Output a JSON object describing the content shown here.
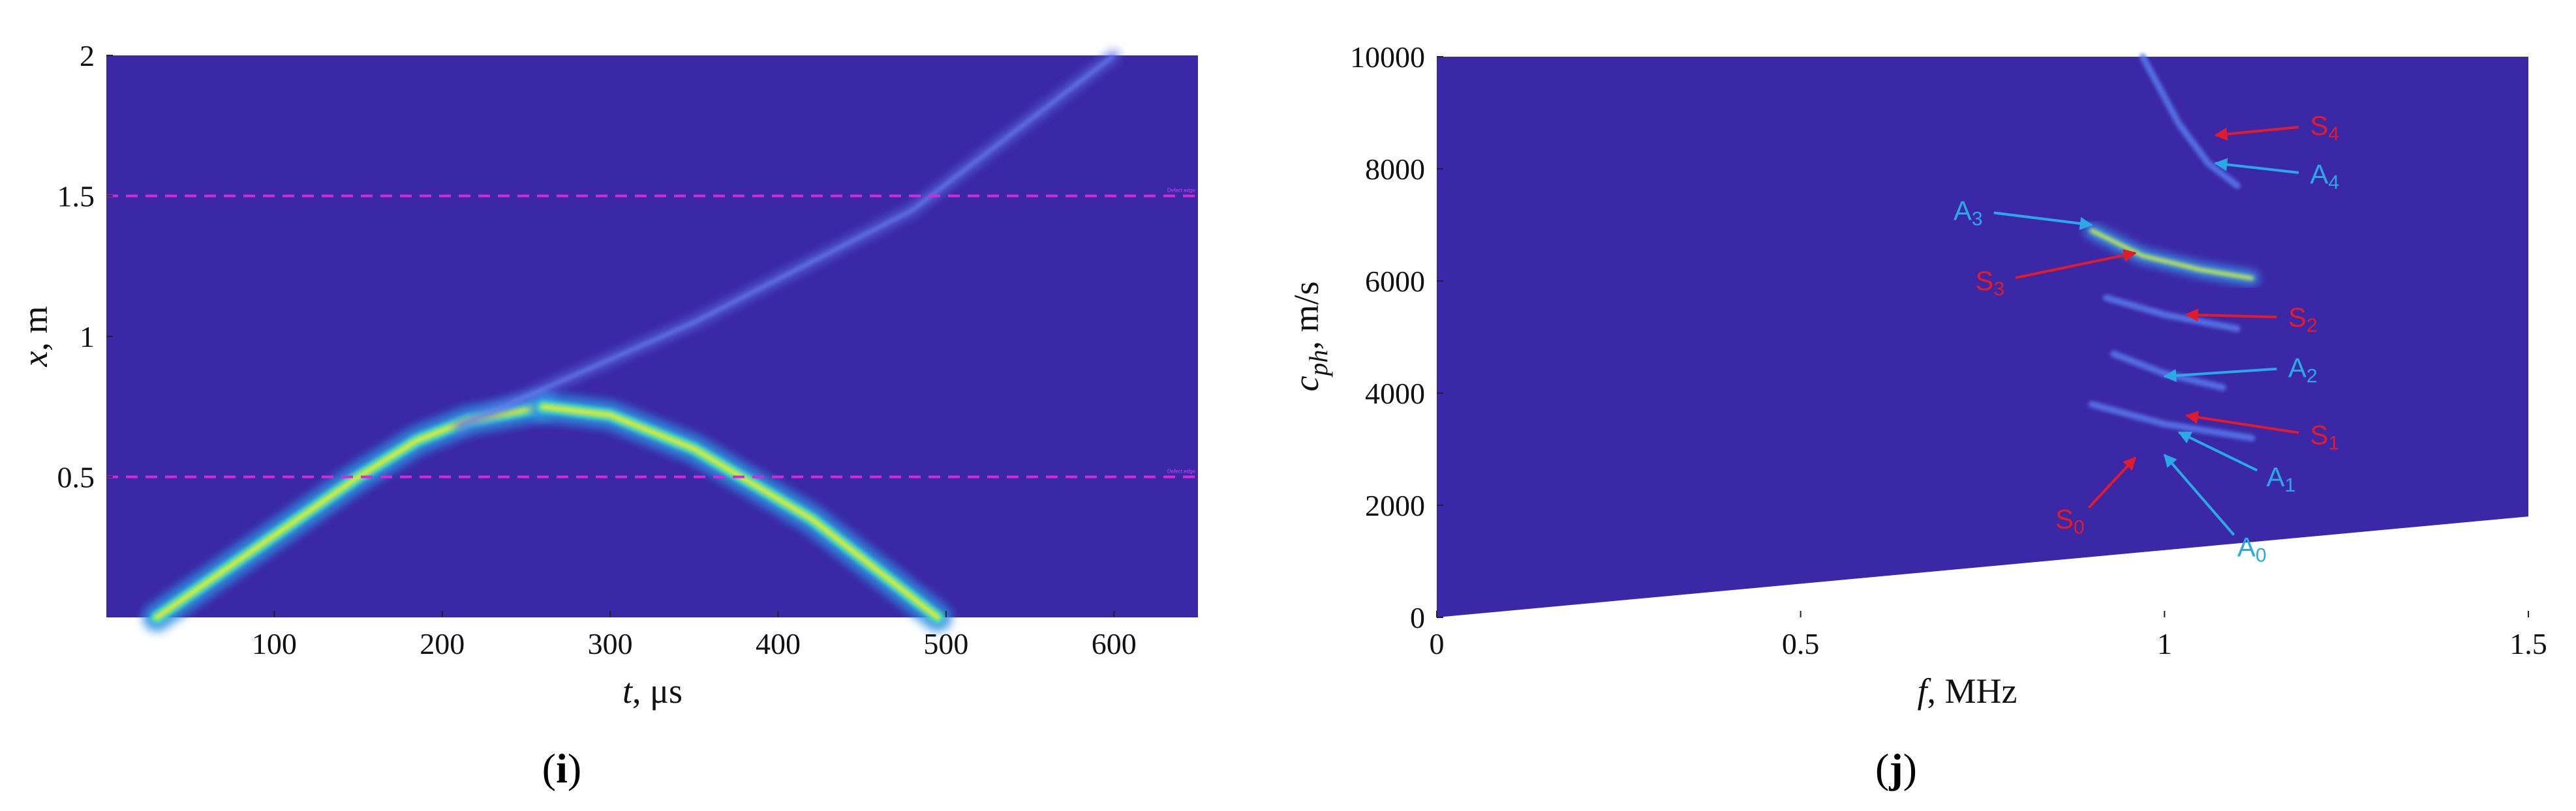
{
  "colors": {
    "background": "#3a28a6",
    "dashed_line": "#d42ad8",
    "mode_s": "#e11b2b",
    "mode_a": "#2aa9e6",
    "blank": "#ffffff"
  },
  "chart_data": [
    {
      "type": "heatmap",
      "caption_open": "(",
      "caption_letter": "i",
      "caption_close": ")",
      "xlabel_var": "t",
      "xlabel_unit": ", μs",
      "ylabel_var": "x",
      "ylabel_unit": ", m",
      "xlim": [
        0,
        650
      ],
      "ylim": [
        0,
        2
      ],
      "xticks": [
        "100",
        "200",
        "300",
        "400",
        "500",
        "600"
      ],
      "yticks": [
        "0.5",
        "1",
        "1.5",
        "2"
      ],
      "reference_lines": [
        {
          "y": 0.5,
          "label": "Defect edge"
        },
        {
          "y": 1.5,
          "label": "Defect edge"
        }
      ],
      "bands": [
        {
          "name": "incident packet",
          "points": [
            [
              30,
              0
            ],
            [
              150,
              0.5
            ],
            [
              185,
              0.63
            ],
            [
              215,
              0.7
            ],
            [
              260,
              0.75
            ]
          ],
          "strength": "high"
        },
        {
          "name": "reflected packet",
          "points": [
            [
              260,
              0.75
            ],
            [
              300,
              0.72
            ],
            [
              350,
              0.6
            ],
            [
              420,
              0.35
            ],
            [
              495,
              0
            ]
          ],
          "strength": "high"
        },
        {
          "name": "transmitted wave",
          "points": [
            [
              210,
              0.68
            ],
            [
              350,
              1.05
            ],
            [
              480,
              1.45
            ],
            [
              600,
              2.0
            ]
          ],
          "strength": "low"
        }
      ]
    },
    {
      "type": "heatmap",
      "caption_open": "(",
      "caption_letter": "j",
      "caption_close": ")",
      "xlabel_var": "f",
      "xlabel_unit": ", MHz",
      "ylabel_var": "c",
      "ylabel_sub": "ph",
      "ylabel_unit": ", m/s",
      "xlim": [
        0,
        1.5
      ],
      "ylim": [
        0,
        10000
      ],
      "xticks": [
        "0",
        "0.5",
        "1",
        "1.5"
      ],
      "yticks": [
        "0",
        "2000",
        "4000",
        "6000",
        "8000",
        "10000"
      ],
      "blank_region": {
        "f_at_edge": 1.5,
        "cph_at_edge": 1800
      },
      "curves": [
        {
          "name": "S3/A3",
          "points": [
            [
              0.9,
              6900
            ],
            [
              0.97,
              6450
            ],
            [
              1.05,
              6200
            ],
            [
              1.12,
              6050
            ]
          ],
          "strength": "high"
        },
        {
          "name": "A4",
          "points": [
            [
              0.97,
              10000
            ],
            [
              1.02,
              8800
            ],
            [
              1.06,
              8100
            ],
            [
              1.1,
              7700
            ]
          ],
          "strength": "low"
        },
        {
          "name": "S2",
          "points": [
            [
              0.92,
              5700
            ],
            [
              1.0,
              5400
            ],
            [
              1.1,
              5150
            ]
          ],
          "strength": "low"
        },
        {
          "name": "A2",
          "points": [
            [
              0.93,
              4700
            ],
            [
              1.0,
              4350
            ],
            [
              1.08,
              4100
            ]
          ],
          "strength": "low"
        },
        {
          "name": "S1/A1",
          "points": [
            [
              0.9,
              3800
            ],
            [
              1.0,
              3450
            ],
            [
              1.12,
              3200
            ]
          ],
          "strength": "low"
        }
      ],
      "annotations": [
        {
          "kind": "S",
          "main": "S",
          "sub": "4",
          "text_at": [
            1.22,
            8770
          ],
          "arrow_to": [
            1.07,
            8600
          ]
        },
        {
          "kind": "A",
          "main": "A",
          "sub": "4",
          "text_at": [
            1.22,
            7900
          ],
          "arrow_to": [
            1.07,
            8100
          ]
        },
        {
          "kind": "A",
          "main": "A",
          "sub": "3",
          "text_at": [
            0.73,
            7250
          ],
          "arrow_to": [
            0.9,
            7000
          ]
        },
        {
          "kind": "S",
          "main": "S",
          "sub": "3",
          "text_at": [
            0.76,
            6000
          ],
          "arrow_to": [
            0.96,
            6500
          ]
        },
        {
          "kind": "S",
          "main": "S",
          "sub": "2",
          "text_at": [
            1.19,
            5350
          ],
          "arrow_to": [
            1.03,
            5400
          ]
        },
        {
          "kind": "A",
          "main": "A",
          "sub": "2",
          "text_at": [
            1.19,
            4450
          ],
          "arrow_to": [
            1.0,
            4300
          ]
        },
        {
          "kind": "S",
          "main": "S",
          "sub": "1",
          "text_at": [
            1.22,
            3250
          ],
          "arrow_to": [
            1.03,
            3600
          ]
        },
        {
          "kind": "A",
          "main": "A",
          "sub": "1",
          "text_at": [
            1.16,
            2500
          ],
          "arrow_to": [
            1.02,
            3300
          ]
        },
        {
          "kind": "S",
          "main": "S",
          "sub": "0",
          "text_at": [
            0.87,
            1750
          ],
          "arrow_to": [
            0.96,
            2850
          ]
        },
        {
          "kind": "A",
          "main": "A",
          "sub": "0",
          "text_at": [
            1.12,
            1250
          ],
          "arrow_to": [
            1.0,
            2900
          ]
        }
      ]
    }
  ]
}
